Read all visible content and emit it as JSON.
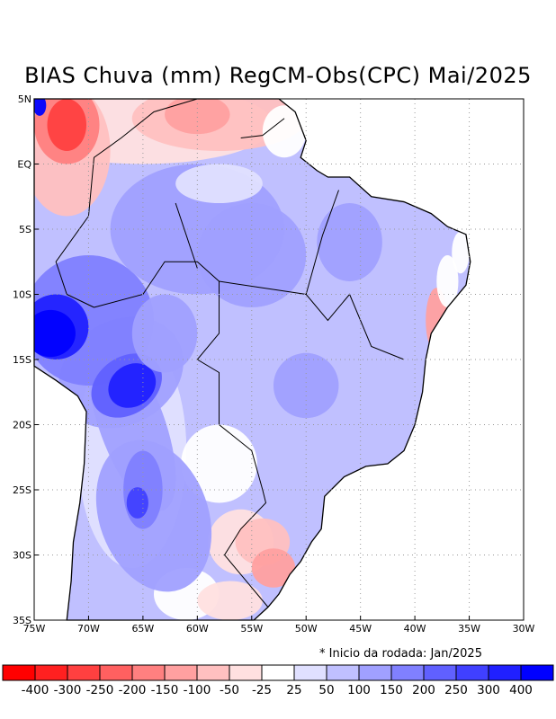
{
  "title": "BIAS Chuva (mm) RegCM-Obs(CPC) Mai/2025",
  "note": "* Inicio da rodada: Jan/2025",
  "map": {
    "lon_range": [
      -75,
      -30
    ],
    "lat_range": [
      -35,
      5
    ],
    "x_ticks": [
      "75W",
      "70W",
      "65W",
      "60W",
      "55W",
      "50W",
      "45W",
      "40W",
      "35W",
      "30W"
    ],
    "y_ticks": [
      "5N",
      "EQ",
      "5S",
      "10S",
      "15S",
      "20S",
      "25S",
      "30S",
      "35S"
    ]
  },
  "colorbar": {
    "colors": [
      "#ff0000",
      "#ff2020",
      "#ff4040",
      "#ff6060",
      "#ff8080",
      "#ffa0a0",
      "#ffc0c0",
      "#ffe0e0",
      "#ffffff",
      "#e0e0ff",
      "#c0c0ff",
      "#a0a0ff",
      "#8080ff",
      "#6060ff",
      "#4040ff",
      "#2020ff",
      "#0000ff"
    ],
    "labels": [
      "-400",
      "-300",
      "-250",
      "-200",
      "-150",
      "-100",
      "-50",
      "-25",
      "25",
      "50",
      "100",
      "150",
      "200",
      "250",
      "300",
      "400"
    ]
  }
}
